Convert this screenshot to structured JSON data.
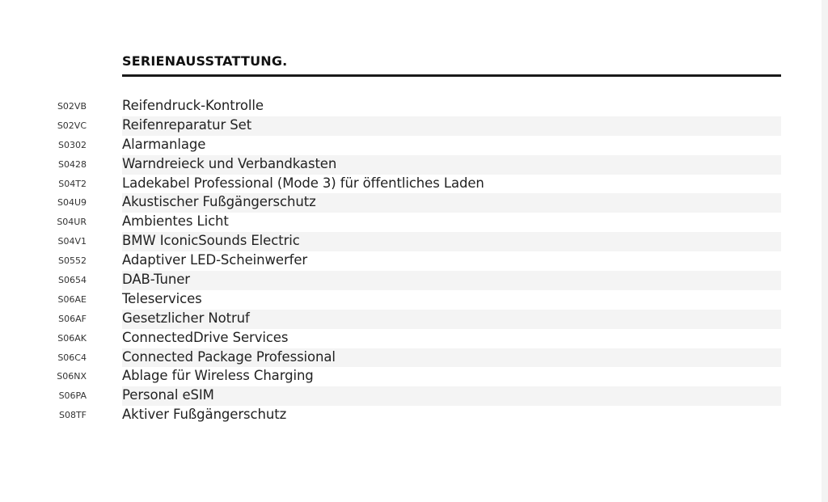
{
  "section": {
    "title": "SERIENAUSSTATTUNG."
  },
  "items": [
    {
      "code": "S02VB",
      "label": "Reifendruck-Kontrolle"
    },
    {
      "code": "S02VC",
      "label": "Reifenreparatur Set"
    },
    {
      "code": "S0302",
      "label": "Alarmanlage"
    },
    {
      "code": "S0428",
      "label": "Warndreieck und Verbandkasten"
    },
    {
      "code": "S04T2",
      "label": "Ladekabel Professional (Mode 3) für öffentliches Laden"
    },
    {
      "code": "S04U9",
      "label": "Akustischer Fußgängerschutz"
    },
    {
      "code": "S04UR",
      "label": "Ambientes Licht"
    },
    {
      "code": "S04V1",
      "label": "BMW IconicSounds Electric"
    },
    {
      "code": "S0552",
      "label": "Adaptiver LED-Scheinwerfer"
    },
    {
      "code": "S0654",
      "label": "DAB-Tuner"
    },
    {
      "code": "S06AE",
      "label": "Teleservices"
    },
    {
      "code": "S06AF",
      "label": "Gesetzlicher Notruf"
    },
    {
      "code": "S06AK",
      "label": "ConnectedDrive Services"
    },
    {
      "code": "S06C4",
      "label": "Connected Package Professional"
    },
    {
      "code": "S06NX",
      "label": "Ablage für Wireless Charging"
    },
    {
      "code": "S06PA",
      "label": "Personal eSIM"
    },
    {
      "code": "S08TF",
      "label": "Aktiver Fußgängerschutz"
    }
  ]
}
